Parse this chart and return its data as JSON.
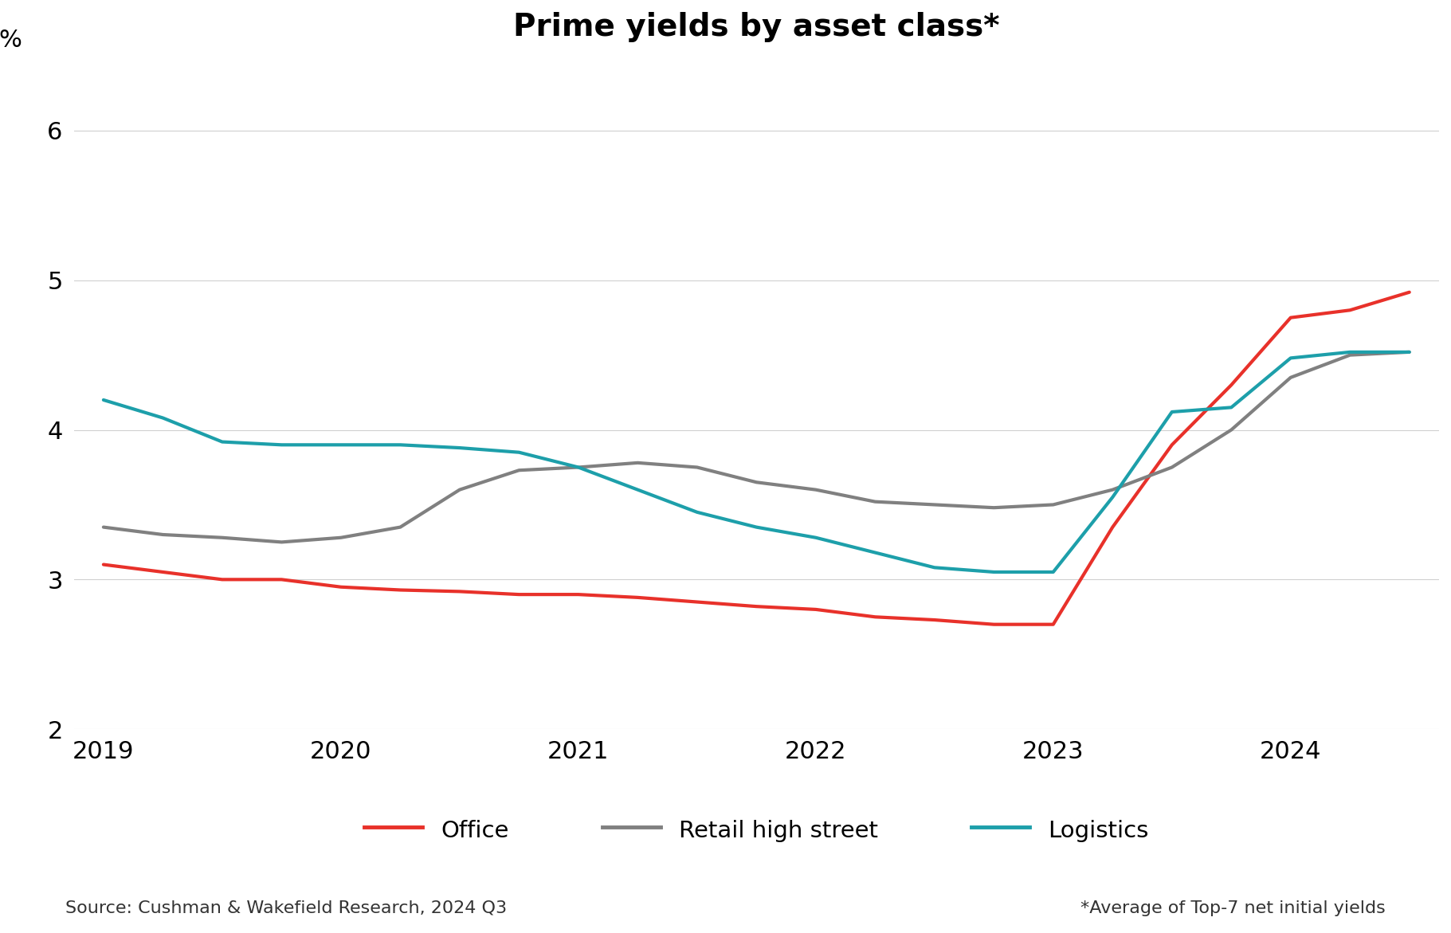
{
  "title": "Prime yields by asset class*",
  "ylabel": "%",
  "source_text": "Source: Cushman & Wakefield Research, 2024 Q3",
  "footnote_text": "*Average of Top-7 net initial yields",
  "background_color": "#ffffff",
  "ylim": [
    2.0,
    6.5
  ],
  "yticks": [
    2,
    3,
    4,
    5,
    6
  ],
  "x_labels": [
    "2019",
    "2020",
    "2021",
    "2022",
    "2023",
    "2024"
  ],
  "series": [
    {
      "name": "Office",
      "color": "#e8312a",
      "linewidth": 3.0,
      "x": [
        0,
        1,
        2,
        3,
        4,
        5,
        6,
        7,
        8,
        9,
        10,
        11,
        12,
        13,
        14,
        15,
        16,
        17,
        18,
        19,
        20,
        21,
        22
      ],
      "values": [
        3.1,
        3.05,
        3.0,
        3.0,
        2.95,
        2.93,
        2.92,
        2.9,
        2.9,
        2.88,
        2.85,
        2.82,
        2.8,
        2.75,
        2.73,
        2.7,
        2.7,
        3.35,
        3.9,
        4.3,
        4.75,
        4.8,
        4.92
      ]
    },
    {
      "name": "Retail high street",
      "color": "#808080",
      "linewidth": 3.0,
      "x": [
        0,
        1,
        2,
        3,
        4,
        5,
        6,
        7,
        8,
        9,
        10,
        11,
        12,
        13,
        14,
        15,
        16,
        17,
        18,
        19,
        20,
        21,
        22
      ],
      "values": [
        3.35,
        3.3,
        3.28,
        3.25,
        3.28,
        3.35,
        3.6,
        3.73,
        3.75,
        3.78,
        3.75,
        3.65,
        3.6,
        3.52,
        3.5,
        3.48,
        3.5,
        3.6,
        3.75,
        4.0,
        4.35,
        4.5,
        4.52
      ]
    },
    {
      "name": "Logistics",
      "color": "#1d9faa",
      "linewidth": 3.0,
      "x": [
        0,
        1,
        2,
        3,
        4,
        5,
        6,
        7,
        8,
        9,
        10,
        11,
        12,
        13,
        14,
        15,
        16,
        17,
        18,
        19,
        20,
        21,
        22
      ],
      "values": [
        4.2,
        4.08,
        3.92,
        3.9,
        3.9,
        3.9,
        3.88,
        3.85,
        3.75,
        3.6,
        3.45,
        3.35,
        3.28,
        3.18,
        3.08,
        3.05,
        3.05,
        3.55,
        4.12,
        4.15,
        4.48,
        4.52,
        4.52
      ]
    }
  ],
  "legend": [
    {
      "label": "Office",
      "color": "#e8312a"
    },
    {
      "label": "Retail high street",
      "color": "#808080"
    },
    {
      "label": "Logistics",
      "color": "#1d9faa"
    }
  ]
}
